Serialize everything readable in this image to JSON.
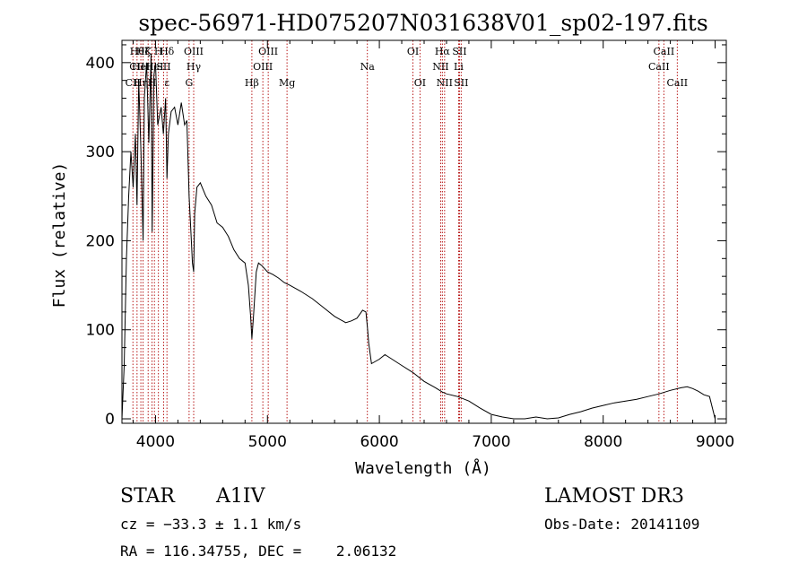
{
  "chart_data": {
    "type": "line",
    "title": "spec-56971-HD075207N031638V01_sp02-197.fits",
    "xlabel": "Wavelength (Å)",
    "ylabel": "Flux (relative)",
    "xlim": [
      3700,
      9100
    ],
    "ylim": [
      -5,
      425
    ],
    "xticks": [
      4000,
      5000,
      6000,
      7000,
      8000,
      9000
    ],
    "yticks": [
      0,
      100,
      200,
      300,
      400
    ],
    "grid": false,
    "line_color": "#000000",
    "marker_color": "#b00000",
    "series": [
      {
        "x": [
          3700,
          3720,
          3740,
          3760,
          3780,
          3800,
          3820,
          3835,
          3850,
          3870,
          3889,
          3900,
          3920,
          3940,
          3960,
          3970,
          3985,
          4000,
          4020,
          4050,
          4070,
          4090,
          4102,
          4115,
          4140,
          4170,
          4200,
          4230,
          4260,
          4280,
          4300,
          4320,
          4330,
          4341,
          4350,
          4370,
          4400,
          4450,
          4500,
          4550,
          4600,
          4650,
          4700,
          4750,
          4800,
          4830,
          4850,
          4861,
          4875,
          4900,
          4920,
          4950,
          5000,
          5050,
          5100,
          5150,
          5200,
          5300,
          5400,
          5500,
          5600,
          5700,
          5750,
          5800,
          5850,
          5880,
          5895,
          5905,
          5930,
          6000,
          6050,
          6100,
          6200,
          6300,
          6400,
          6500,
          6563,
          6600,
          6700,
          6800,
          6900,
          7000,
          7100,
          7200,
          7300,
          7400,
          7500,
          7600,
          7700,
          7800,
          7900,
          8000,
          8100,
          8200,
          8300,
          8400,
          8500,
          8600,
          8700,
          8750,
          8800,
          8850,
          8900,
          8950,
          9000
        ],
        "y": [
          0,
          60,
          180,
          250,
          300,
          260,
          320,
          240,
          380,
          300,
          200,
          360,
          400,
          310,
          410,
          210,
          385,
          400,
          330,
          350,
          320,
          360,
          270,
          320,
          345,
          350,
          330,
          355,
          330,
          335,
          250,
          200,
          175,
          165,
          230,
          260,
          265,
          250,
          240,
          220,
          215,
          205,
          190,
          180,
          175,
          150,
          115,
          90,
          115,
          165,
          175,
          172,
          165,
          162,
          158,
          153,
          150,
          143,
          135,
          125,
          115,
          108,
          110,
          113,
          122,
          120,
          100,
          85,
          62,
          67,
          72,
          68,
          60,
          52,
          42,
          35,
          30,
          28,
          25,
          20,
          12,
          5,
          2,
          0,
          0,
          2,
          0,
          1,
          5,
          8,
          12,
          15,
          18,
          20,
          22,
          25,
          28,
          32,
          35,
          36,
          34,
          31,
          27,
          25,
          0
        ]
      }
    ],
    "lines": [
      {
        "wl": 3798,
        "labels": [
          {
            "text": "CII",
            "row": 3
          }
        ]
      },
      {
        "wl": 3835,
        "labels": [
          {
            "text": "Hθ",
            "row": 1
          },
          {
            "text": "CII",
            "row": 2
          }
        ]
      },
      {
        "wl": 3869,
        "labels": [
          {
            "text": "HeI",
            "row": 2
          },
          {
            "text": "Hη",
            "row": 3
          }
        ]
      },
      {
        "wl": 3889,
        "labels": [
          {
            "text": "Hζ",
            "row": 1
          }
        ]
      },
      {
        "wl": 3934,
        "labels": [
          {
            "text": "K",
            "row": 1
          }
        ]
      },
      {
        "wl": 3969,
        "labels": [
          {
            "text": "H",
            "row": 3
          }
        ]
      },
      {
        "wl": 3990,
        "labels": [
          {
            "text": "HeI",
            "row": 2
          }
        ]
      },
      {
        "wl": 4026,
        "labels": [
          {
            "text": "H",
            "row": 1
          }
        ]
      },
      {
        "wl": 4072,
        "labels": [
          {
            "text": "SII",
            "row": 2
          }
        ]
      },
      {
        "wl": 4102,
        "labels": [
          {
            "text": "Hδ",
            "row": 1
          },
          {
            "text": "ε",
            "row": 3
          }
        ]
      },
      {
        "wl": 4300,
        "labels": [
          {
            "text": "G",
            "row": 3
          }
        ]
      },
      {
        "wl": 4341,
        "labels": [
          {
            "text": "OIII",
            "row": 1
          },
          {
            "text": "Hγ",
            "row": 2
          }
        ]
      },
      {
        "wl": 4861,
        "labels": [
          {
            "text": "Hβ",
            "row": 3
          }
        ]
      },
      {
        "wl": 4959,
        "labels": [
          {
            "text": "OIII",
            "row": 2
          }
        ]
      },
      {
        "wl": 5007,
        "labels": [
          {
            "text": "OIII",
            "row": 1
          }
        ]
      },
      {
        "wl": 5175,
        "labels": [
          {
            "text": "Mg",
            "row": 3
          }
        ]
      },
      {
        "wl": 5893,
        "labels": [
          {
            "text": "Na",
            "row": 2
          }
        ]
      },
      {
        "wl": 6300,
        "labels": [
          {
            "text": "OI",
            "row": 1
          }
        ]
      },
      {
        "wl": 6363,
        "labels": [
          {
            "text": "OI",
            "row": 3
          }
        ]
      },
      {
        "wl": 6548,
        "labels": [
          {
            "text": "NII",
            "row": 2
          }
        ]
      },
      {
        "wl": 6563,
        "labels": [
          {
            "text": "Hα",
            "row": 1
          }
        ]
      },
      {
        "wl": 6583,
        "labels": [
          {
            "text": "NII",
            "row": 3
          }
        ]
      },
      {
        "wl": 6708,
        "labels": [
          {
            "text": "Li",
            "row": 2
          }
        ]
      },
      {
        "wl": 6716,
        "labels": [
          {
            "text": "SII",
            "row": 1
          }
        ]
      },
      {
        "wl": 6731,
        "labels": [
          {
            "text": "SII",
            "row": 3
          }
        ]
      },
      {
        "wl": 8498,
        "labels": [
          {
            "text": "CaII",
            "row": 2
          }
        ]
      },
      {
        "wl": 8542,
        "labels": [
          {
            "text": "CaII",
            "row": 1
          }
        ]
      },
      {
        "wl": 8662,
        "labels": [
          {
            "text": "CaII",
            "row": 3
          }
        ]
      }
    ]
  },
  "info": {
    "object_class": "STAR",
    "subclass": "A1IV",
    "survey": "LAMOST DR3",
    "cz": "cz = −33.3 ± 1.1 km/s",
    "obs_date": "Obs-Date: 20141109",
    "coords": "RA = 116.34755, DEC =    2.06132"
  }
}
